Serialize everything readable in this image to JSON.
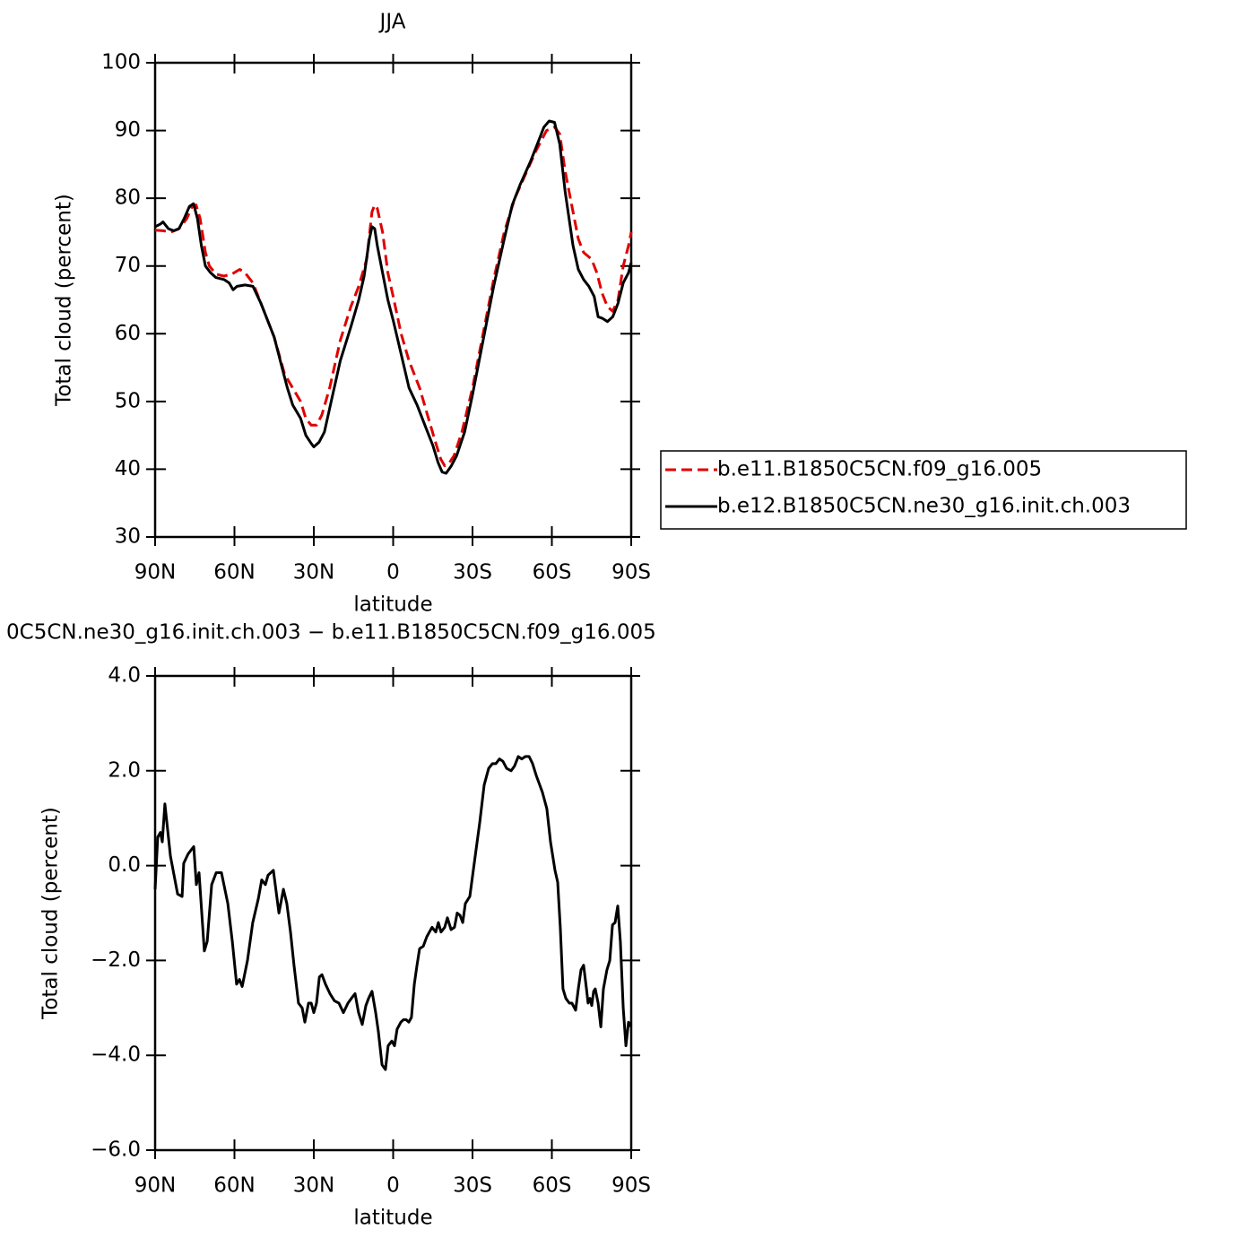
{
  "chart_data": [
    {
      "type": "line",
      "title": "JJA",
      "xlabel": "latitude",
      "ylabel": "Total cloud (percent)",
      "xlim": [
        90,
        -90
      ],
      "xticks": [
        {
          "value": 90,
          "label": "90N"
        },
        {
          "value": 60,
          "label": "60N"
        },
        {
          "value": 30,
          "label": "30N"
        },
        0,
        {
          "value": -30,
          "label": "30S"
        },
        {
          "value": -60,
          "label": "60S"
        },
        {
          "value": -90,
          "label": "90S"
        }
      ],
      "ylim": [
        30,
        100
      ],
      "yticks": [
        30,
        40,
        50,
        60,
        70,
        80,
        90,
        100
      ],
      "legend": "outside right",
      "series": [
        {
          "name": "b.e11.B1850C5CN.f09_g16.005",
          "color": "#e00000",
          "dashed": true,
          "x": [
            90,
            87,
            84,
            81,
            78,
            76,
            74.5,
            73,
            71,
            69.5,
            67,
            64,
            61,
            58,
            56,
            53,
            50,
            45,
            41,
            38,
            35,
            33,
            31,
            29,
            27,
            24,
            20,
            16,
            13,
            10,
            8,
            7,
            6,
            4,
            2,
            0,
            -3,
            -6,
            -10,
            -13,
            -16,
            -18,
            -19.5,
            -21,
            -23,
            -26,
            -30,
            -34,
            -38,
            -42,
            -46,
            -50,
            -54,
            -58,
            -61,
            -63,
            -65,
            -68,
            -70,
            -72,
            -75,
            -77,
            -79,
            -81,
            -83,
            -85,
            -87,
            -89,
            -90
          ],
          "values": [
            75.3,
            75.2,
            75.0,
            75.5,
            77,
            78.8,
            79,
            77,
            72,
            70,
            68.8,
            68.5,
            68.8,
            69.5,
            69,
            67.5,
            64.5,
            59.5,
            54,
            52,
            50,
            47.5,
            46.5,
            46.5,
            48,
            52,
            59,
            64,
            67,
            71,
            78,
            79,
            78.5,
            75,
            69,
            65.5,
            60,
            56,
            52,
            48,
            44,
            41.5,
            40.5,
            40.8,
            42,
            45.5,
            52,
            60,
            68,
            75,
            80,
            83.5,
            87,
            90,
            90.5,
            89.5,
            84,
            78,
            74,
            72,
            71,
            69,
            66,
            64,
            63.3,
            65,
            70,
            73,
            75
          ]
        },
        {
          "name": "b.e12.B1850C5CN.ne30_g16.init.ch.003",
          "color": "#000000",
          "dashed": false,
          "x": [
            90,
            88,
            87,
            85,
            83,
            81,
            79,
            77,
            75.5,
            74,
            72.5,
            71,
            69,
            67,
            64,
            62,
            60.5,
            59,
            56,
            53,
            50,
            45,
            42,
            40,
            38,
            35,
            33,
            31,
            30,
            28,
            26,
            24,
            20,
            16,
            13,
            11,
            9,
            8,
            7,
            6,
            4,
            2,
            0,
            -3,
            -6,
            -9,
            -12,
            -15,
            -17,
            -18.5,
            -20,
            -22,
            -24,
            -27,
            -30,
            -34,
            -38,
            -42,
            -45,
            -48,
            -52,
            -55,
            -57,
            -59,
            -61,
            -63,
            -65,
            -68,
            -70,
            -72,
            -74,
            -76,
            -77.5,
            -79,
            -81,
            -83,
            -85,
            -87,
            -89,
            -90
          ],
          "values": [
            75.8,
            76.2,
            76.5,
            75.5,
            75.2,
            75.5,
            77,
            78.8,
            79.2,
            77,
            73,
            70,
            69,
            68.3,
            68,
            67.5,
            66.5,
            67,
            67.2,
            67,
            64.5,
            59.5,
            55,
            52,
            49.5,
            47.5,
            45,
            43.8,
            43.3,
            44,
            45.5,
            49,
            56,
            61,
            65,
            68.5,
            74,
            75.8,
            75.5,
            73,
            69,
            65,
            62,
            57,
            52,
            49.5,
            46.5,
            43.5,
            41,
            39.6,
            39.4,
            40.5,
            42,
            45.5,
            51,
            59,
            67,
            74,
            79,
            82,
            85.5,
            88.5,
            90.5,
            91.4,
            91.2,
            88,
            81,
            73,
            69.5,
            68,
            67,
            65.5,
            62.5,
            62.3,
            61.8,
            62.5,
            64.5,
            67.5,
            69,
            70.5
          ]
        }
      ]
    },
    {
      "type": "line",
      "title": "0C5CN.ne30_g16.init.ch.003 − b.e11.B1850C5CN.f09_g16.005",
      "xlabel": "latitude",
      "ylabel": "Total cloud (percent)",
      "xlim": [
        90,
        -90
      ],
      "xticks": [
        {
          "value": 90,
          "label": "90N"
        },
        {
          "value": 60,
          "label": "60N"
        },
        {
          "value": 30,
          "label": "30N"
        },
        0,
        {
          "value": -30,
          "label": "30S"
        },
        {
          "value": -60,
          "label": "60S"
        },
        {
          "value": -90,
          "label": "90S"
        }
      ],
      "ylim": [
        -6,
        4
      ],
      "yticks": [
        {
          "value": -6,
          "label": "−6.0"
        },
        {
          "value": -4,
          "label": "−4.0"
        },
        {
          "value": -2,
          "label": "−2.0"
        },
        {
          "value": 0,
          "label": "0.0"
        },
        {
          "value": 2,
          "label": "2.0"
        },
        {
          "value": 4,
          "label": "4.0"
        }
      ],
      "series": [
        {
          "color": "#000000",
          "dashed": false,
          "x": [
            90,
            89.0,
            88.0,
            87.3,
            86.3,
            84.2,
            83.2,
            81.5,
            79.8,
            79.2,
            77.5,
            75.4,
            74.4,
            73.4,
            71.4,
            70.3,
            68.6,
            66.9,
            64.9,
            62.5,
            60.8,
            59.2,
            58.1,
            57.1,
            55.1,
            53.1,
            51.0,
            49.7,
            48.3,
            47.3,
            45.3,
            43.2,
            41.5,
            40.2,
            38.8,
            37.5,
            35.8,
            34.4,
            33.4,
            32.0,
            31.0,
            30.0,
            29.0,
            27.9,
            26.9,
            25.6,
            23.9,
            22.2,
            20.5,
            18.8,
            17.1,
            15.8,
            14.4,
            13.1,
            11.7,
            10.3,
            9.3,
            8.0,
            6.6,
            5.6,
            4.2,
            2.9,
            1.9,
            0.5,
            -0.5,
            -1.5,
            -2.9,
            -3.9,
            -4.9,
            -5.9,
            -6.9,
            -8.0,
            -9.0,
            -10.0,
            -11.4,
            -12.7,
            -13.7,
            -14.7,
            -16.1,
            -17.1,
            -18.1,
            -19.5,
            -20.5,
            -21.9,
            -23.2,
            -24.2,
            -25.3,
            -26.3,
            -27.3,
            -29.0,
            -31.0,
            -32.7,
            -34.4,
            -36.1,
            -37.5,
            -38.8,
            -40.2,
            -41.5,
            -42.9,
            -44.6,
            -45.9,
            -47.3,
            -48.6,
            -50.0,
            -51.4,
            -52.7,
            -54.1,
            -56.4,
            -58.1,
            -59.5,
            -61.2,
            -62.2,
            -63.2,
            -64.2,
            -65.3,
            -66.6,
            -67.6,
            -69.0,
            -70.0,
            -71.0,
            -72.0,
            -73.1,
            -73.7,
            -74.4,
            -75.1,
            -75.8,
            -76.4,
            -77.5,
            -78.5,
            -79.5,
            -80.8,
            -81.9,
            -82.9,
            -83.9,
            -84.9,
            -85.9,
            -87.0,
            -88.0,
            -89.0,
            -90
          ],
          "values": [
            -0.5,
            0.6,
            0.7,
            0.5,
            1.3,
            0.2,
            -0.1,
            -0.6,
            -0.65,
            0.05,
            0.25,
            0.4,
            -0.4,
            -0.15,
            -1.8,
            -1.6,
            -0.4,
            -0.15,
            -0.15,
            -0.8,
            -1.6,
            -2.5,
            -2.4,
            -2.55,
            -2.0,
            -1.2,
            -0.7,
            -0.3,
            -0.4,
            -0.2,
            -0.1,
            -1.0,
            -0.5,
            -0.8,
            -1.4,
            -2.1,
            -2.9,
            -3.0,
            -3.3,
            -2.9,
            -2.9,
            -3.1,
            -2.9,
            -2.35,
            -2.3,
            -2.5,
            -2.7,
            -2.85,
            -2.9,
            -3.1,
            -2.9,
            -2.8,
            -2.7,
            -3.1,
            -3.35,
            -2.95,
            -2.8,
            -2.65,
            -3.1,
            -3.5,
            -4.2,
            -4.3,
            -3.8,
            -3.7,
            -3.8,
            -3.45,
            -3.3,
            -3.25,
            -3.25,
            -3.3,
            -3.2,
            -2.5,
            -2.1,
            -1.75,
            -1.7,
            -1.5,
            -1.4,
            -1.3,
            -1.4,
            -1.2,
            -1.4,
            -1.3,
            -1.1,
            -1.35,
            -1.3,
            -1.0,
            -1.05,
            -1.2,
            -0.8,
            -0.65,
            0.2,
            0.9,
            1.7,
            2.05,
            2.15,
            2.15,
            2.25,
            2.2,
            2.05,
            2.0,
            2.1,
            2.3,
            2.25,
            2.3,
            2.3,
            2.15,
            1.9,
            1.55,
            1.2,
            0.5,
            -0.1,
            -0.35,
            -1.3,
            -2.6,
            -2.8,
            -2.9,
            -2.9,
            -3.05,
            -2.6,
            -2.2,
            -2.1,
            -2.6,
            -2.9,
            -2.8,
            -2.95,
            -2.65,
            -2.6,
            -2.9,
            -3.4,
            -2.6,
            -2.2,
            -2.0,
            -1.25,
            -1.2,
            -0.85,
            -1.6,
            -3.0,
            -3.8,
            -3.3,
            -3.4
          ]
        }
      ]
    }
  ]
}
